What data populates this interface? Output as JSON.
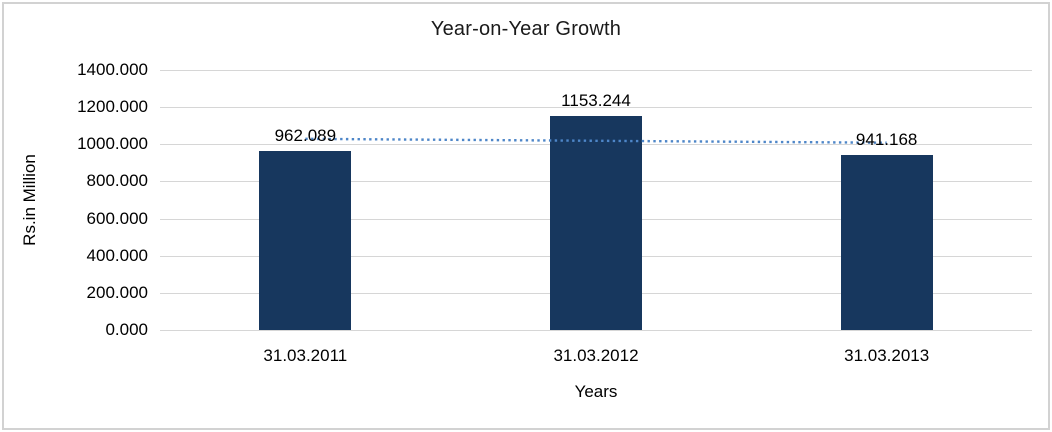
{
  "chart_data": {
    "type": "bar",
    "title": "Year-on-Year Growth",
    "xlabel": "Years",
    "ylabel": "Rs.in Million",
    "categories": [
      "31.03.2011",
      "31.03.2012",
      "31.03.2013"
    ],
    "values": [
      962.089,
      1153.244,
      941.168
    ],
    "data_labels": [
      "962.089",
      "1153.244",
      "941.168"
    ],
    "y_ticks": [
      "1400.000",
      "1200.000",
      "1000.000",
      "800.000",
      "600.000",
      "400.000",
      "200.000",
      "0.000"
    ],
    "ylim": [
      0,
      1400
    ],
    "y_step": 200,
    "grid": true,
    "legend": "none",
    "bar_color": "#17375E",
    "gridline_color": "#D6D6D6",
    "trendline": {
      "type": "linear",
      "style": "dotted",
      "color": "#4E86C8"
    }
  }
}
